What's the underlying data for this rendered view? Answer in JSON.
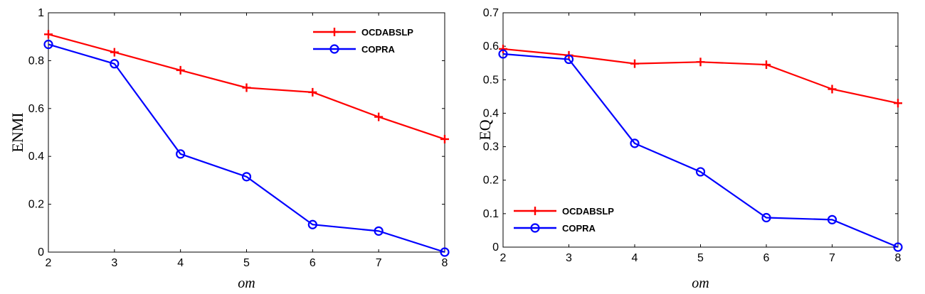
{
  "chart_data": [
    {
      "type": "line",
      "xlabel": "om",
      "ylabel": "ENMI",
      "x": [
        2,
        3,
        4,
        5,
        6,
        7,
        8
      ],
      "xlim": [
        2,
        8
      ],
      "xticks": [
        "2",
        "3",
        "4",
        "5",
        "6",
        "7",
        "8"
      ],
      "ylim": [
        0,
        1
      ],
      "yticks": [
        "0",
        "0.2",
        "0.4",
        "0.6",
        "0.8",
        "1"
      ],
      "grid": false,
      "legend_position": "top-right",
      "series": [
        {
          "name": "OCDABSLP",
          "color": "#ff0000",
          "marker": "plus",
          "values": [
            0.91,
            0.835,
            0.76,
            0.687,
            0.668,
            0.565,
            0.472
          ]
        },
        {
          "name": "COPRA",
          "color": "#0000ff",
          "marker": "circle",
          "values": [
            0.868,
            0.787,
            0.41,
            0.315,
            0.115,
            0.088,
            0.0
          ]
        }
      ]
    },
    {
      "type": "line",
      "xlabel": "om",
      "ylabel": "EQ",
      "x": [
        2,
        3,
        4,
        5,
        6,
        7,
        8
      ],
      "xlim": [
        2,
        8
      ],
      "xticks": [
        "2",
        "3",
        "4",
        "5",
        "6",
        "7",
        "8"
      ],
      "ylim": [
        0,
        0.7
      ],
      "yticks": [
        "0",
        "0.1",
        "0.2",
        "0.3",
        "0.4",
        "0.5",
        "0.6",
        "0.7"
      ],
      "grid": false,
      "legend_position": "bottom-left",
      "series": [
        {
          "name": "OCDABSLP",
          "color": "#ff0000",
          "marker": "plus",
          "values": [
            0.592,
            0.573,
            0.548,
            0.553,
            0.545,
            0.472,
            0.43
          ]
        },
        {
          "name": "COPRA",
          "color": "#0000ff",
          "marker": "circle",
          "values": [
            0.577,
            0.561,
            0.31,
            0.225,
            0.088,
            0.082,
            0.0
          ]
        }
      ]
    }
  ]
}
